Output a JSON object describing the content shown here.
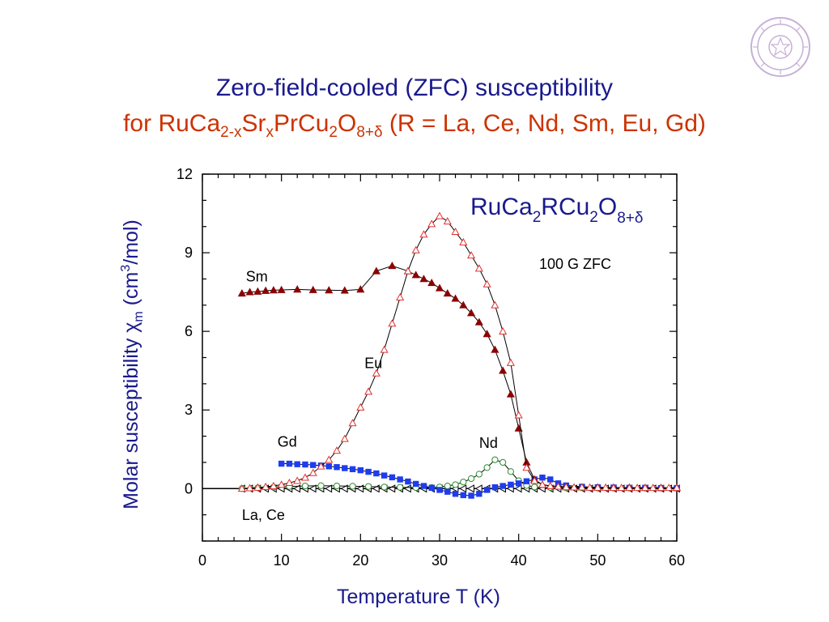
{
  "slide": {
    "title_line1": "Zero-field-cooled (ZFC) susceptibility",
    "title_line2_parts": [
      "for RuCa",
      "2-x",
      "Sr",
      "x",
      "PrCu",
      "2",
      "O",
      "8+δ",
      " (R = La, Ce, Nd, Sm, Eu, Gd)"
    ]
  },
  "colors": {
    "title_blue": "#1a1a8c",
    "title_orange": "#cc3300",
    "Sm": "#8b0000",
    "Eu": "#e03030",
    "Gd": "#1e3cf0",
    "Nd": "#2e8b2e",
    "LaCe": "#000000",
    "seal": "#c6b0d8"
  },
  "chart_data": {
    "type": "line",
    "xlabel": "Temperature  T (K)",
    "ylabel_parts": [
      "Molar susceptibility  ",
      "χ",
      "m",
      " (cm",
      "3",
      "/mol)"
    ],
    "xlim": [
      0,
      60
    ],
    "ylim": [
      -2,
      12
    ],
    "x_ticks": [
      0,
      10,
      20,
      30,
      40,
      50,
      60
    ],
    "y_ticks": [
      0,
      3,
      6,
      9,
      12
    ],
    "inset_label_parts": [
      "RuCa",
      "2",
      "RCu",
      "2",
      "O",
      "8+δ"
    ],
    "annotation": "100 G ZFC",
    "series": [
      {
        "name": "Sm",
        "label_at": [
          5.5,
          7.9
        ],
        "marker": "triangle-filled",
        "x": [
          5,
          6,
          7,
          8,
          9,
          10,
          12,
          14,
          16,
          18,
          20,
          22,
          24,
          26,
          27,
          28,
          29,
          30,
          31,
          32,
          33,
          34,
          35,
          36,
          37,
          38,
          39,
          40,
          41,
          42,
          43,
          44,
          46,
          48,
          50,
          52,
          54,
          56,
          58,
          60
        ],
        "y": [
          7.45,
          7.5,
          7.52,
          7.55,
          7.57,
          7.58,
          7.6,
          7.58,
          7.57,
          7.56,
          7.6,
          8.3,
          8.5,
          8.3,
          8.15,
          8.0,
          7.85,
          7.65,
          7.45,
          7.25,
          7.0,
          6.7,
          6.35,
          5.9,
          5.3,
          4.5,
          3.6,
          2.3,
          1.0,
          0.35,
          0.15,
          0.1,
          0.07,
          0.05,
          0.05,
          0.04,
          0.04,
          0.03,
          0.03,
          0.03
        ]
      },
      {
        "name": "Eu",
        "label_at": [
          20.5,
          4.6
        ],
        "marker": "triangle-open",
        "x": [
          5,
          6,
          7,
          8,
          9,
          10,
          11,
          12,
          13,
          14,
          15,
          16,
          17,
          18,
          19,
          20,
          21,
          22,
          23,
          24,
          25,
          26,
          27,
          28,
          29,
          30,
          31,
          32,
          33,
          34,
          35,
          36,
          37,
          38,
          39,
          40,
          41,
          42,
          43,
          44,
          45,
          46,
          47,
          48,
          49,
          50,
          51,
          52,
          53,
          54,
          55,
          56,
          57,
          58,
          59,
          60
        ],
        "y": [
          0.0,
          0.02,
          0.04,
          0.07,
          0.1,
          0.15,
          0.22,
          0.3,
          0.42,
          0.6,
          0.85,
          1.1,
          1.45,
          1.9,
          2.5,
          3.1,
          3.7,
          4.4,
          5.3,
          6.3,
          7.3,
          8.3,
          9.1,
          9.7,
          10.1,
          10.4,
          10.2,
          9.8,
          9.4,
          8.9,
          8.4,
          7.8,
          7.0,
          6.0,
          4.8,
          2.8,
          0.8,
          0.3,
          0.15,
          0.1,
          0.08,
          0.06,
          0.05,
          0.05,
          0.04,
          0.04,
          0.04,
          0.03,
          0.03,
          0.03,
          0.03,
          0.03,
          0.03,
          0.03,
          0.03,
          0.03
        ]
      },
      {
        "name": "Gd",
        "label_at": [
          9.5,
          1.6
        ],
        "marker": "square-filled",
        "x": [
          10,
          11,
          12,
          13,
          14,
          15,
          16,
          17,
          18,
          19,
          20,
          21,
          22,
          23,
          24,
          25,
          26,
          27,
          28,
          29,
          30,
          31,
          32,
          33,
          34,
          35,
          36,
          37,
          38,
          39,
          40,
          41,
          42,
          43,
          44,
          45,
          46,
          48,
          50,
          52,
          54,
          56,
          58,
          60
        ],
        "y": [
          0.95,
          0.95,
          0.93,
          0.92,
          0.9,
          0.88,
          0.85,
          0.82,
          0.78,
          0.74,
          0.7,
          0.64,
          0.58,
          0.5,
          0.43,
          0.35,
          0.27,
          0.18,
          0.1,
          0.03,
          -0.05,
          -0.12,
          -0.2,
          -0.25,
          -0.27,
          -0.2,
          -0.05,
          0.05,
          0.1,
          0.15,
          0.2,
          0.28,
          0.35,
          0.42,
          0.35,
          0.2,
          0.12,
          0.07,
          0.05,
          0.04,
          0.03,
          0.03,
          0.02,
          0.02
        ]
      },
      {
        "name": "Nd",
        "label_at": [
          35,
          1.55
        ],
        "marker": "circle-open",
        "x": [
          5,
          7,
          9,
          11,
          13,
          15,
          17,
          19,
          21,
          23,
          25,
          27,
          29,
          30,
          31,
          32,
          33,
          34,
          35,
          36,
          37,
          38,
          39,
          40,
          41,
          42,
          44,
          46,
          48,
          50,
          52,
          54,
          56,
          58,
          60
        ],
        "y": [
          0.0,
          0.03,
          0.06,
          0.08,
          0.1,
          0.11,
          0.1,
          0.09,
          0.08,
          0.06,
          0.05,
          0.04,
          0.04,
          0.06,
          0.1,
          0.15,
          0.25,
          0.38,
          0.55,
          0.8,
          1.1,
          1.0,
          0.65,
          0.3,
          0.12,
          0.06,
          0.04,
          0.03,
          0.03,
          0.02,
          0.02,
          0.02,
          0.02,
          0.02,
          0.02
        ]
      },
      {
        "name": "La, Ce",
        "label_at": [
          5,
          -1.2
        ],
        "marker": "triangle-left-open",
        "x": [
          5,
          6,
          7,
          8,
          9,
          10,
          11,
          12,
          13,
          14,
          15,
          16,
          17,
          18,
          19,
          20,
          21,
          22,
          23,
          24,
          25,
          26,
          27,
          28,
          29,
          30,
          31,
          32,
          33,
          34,
          35,
          36,
          37,
          38,
          39,
          40,
          41,
          42,
          43,
          44,
          45,
          46,
          47,
          48,
          49,
          50,
          51,
          52,
          53,
          54,
          55,
          56,
          57,
          58,
          59,
          60
        ],
        "y": [
          0.0,
          0.0,
          0.0,
          0.0,
          0.0,
          0.0,
          0.0,
          0.0,
          0.0,
          0.0,
          0.0,
          0.0,
          0.0,
          0.0,
          0.0,
          0.0,
          0.0,
          0.0,
          0.0,
          0.0,
          0.0,
          0.0,
          0.0,
          0.0,
          0.0,
          0.0,
          0.0,
          0.0,
          0.0,
          0.0,
          0.0,
          0.0,
          0.0,
          0.0,
          0.0,
          0.0,
          0.0,
          0.0,
          0.0,
          0.0,
          0.0,
          0.0,
          0.0,
          0.0,
          0.0,
          0.0,
          0.0,
          0.0,
          0.0,
          0.0,
          0.0,
          0.0,
          0.0,
          0.0,
          0.0,
          0.0
        ]
      }
    ]
  }
}
